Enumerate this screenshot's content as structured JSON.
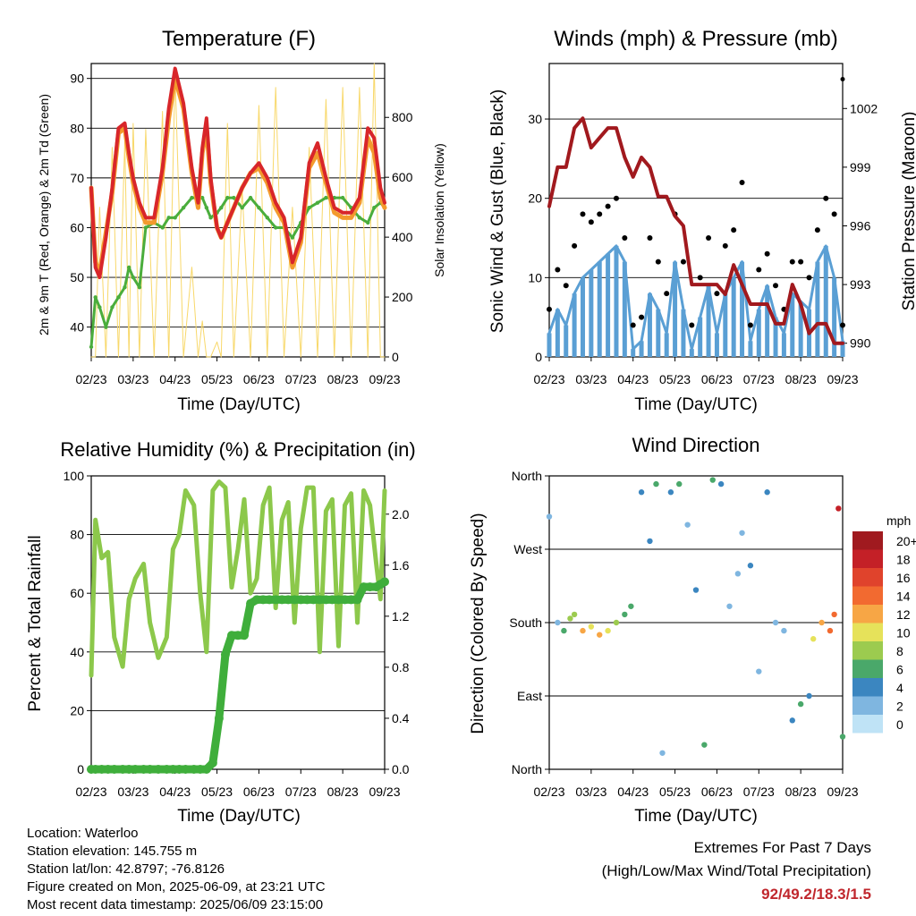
{
  "dates": [
    "02/23",
    "03/23",
    "04/23",
    "05/23",
    "06/23",
    "07/23",
    "08/23",
    "09/23"
  ],
  "panels": {
    "temperature": {
      "title": "Temperature (F)",
      "xlabel": "Time (Day/UTC)",
      "ylabel_left": "2m & 9m T (Red, Orange) & 2m Td (Green)",
      "ylabel_right": "Solar Insolation (Yellow)"
    },
    "winds": {
      "title": "Winds (mph) & Pressure (mb)",
      "xlabel": "Time (Day/UTC)",
      "ylabel_left": "Sonic Wind & Gust (Blue, Black)",
      "ylabel_right": "Station Pressure (Maroon)"
    },
    "humidity": {
      "title": "Relative Humidity (%) & Precipitation (in)",
      "xlabel": "Time (Day/UTC)",
      "ylabel_left": "Percent & Total Rainfall"
    },
    "direction": {
      "title": "Wind Direction",
      "xlabel": "Time (Day/UTC)",
      "ylabel_left": "Direction (Colored By Speed)"
    }
  },
  "colorbar": {
    "unit": "mph",
    "labels": [
      "20+",
      "18",
      "16",
      "14",
      "12",
      "10",
      "8",
      "6",
      "4",
      "2",
      "0"
    ],
    "colors": [
      "#a01a1f",
      "#c42027",
      "#e0432c",
      "#f26a30",
      "#f7a645",
      "#e6e25a",
      "#9ccb4f",
      "#4aa86a",
      "#3b86c0",
      "#7fb6e0",
      "#bfe3f6"
    ]
  },
  "footer": {
    "location": "Location: Waterloo",
    "elevation": "Station elevation: 145.755 m",
    "latlon": "Station lat/lon: 42.8797; -76.8126",
    "created": "Figure created on Mon, 2025-06-09, at 23:21 UTC",
    "latest": "Most recent data timestamp: 2025/06/09 23:15:00"
  },
  "extremes": {
    "line1": "Extremes For Past 7 Days",
    "line2": "(High/Low/Max Wind/Total Precipitation)",
    "values": "92/49.2/18.3/1.5"
  },
  "chart_data": [
    {
      "type": "line",
      "title": "Temperature (F)",
      "xlabel": "Time (Day/UTC)",
      "ylabel": "2m & 9m T (Red, Orange) & 2m Td (Green)",
      "y2label": "Solar Insolation (Yellow)",
      "categories": [
        "02/23",
        "03/23",
        "04/23",
        "05/23",
        "06/23",
        "07/23",
        "08/23",
        "09/23"
      ],
      "ylim": [
        34,
        93
      ],
      "y2lim": [
        0,
        980
      ],
      "grid": true,
      "x": [
        0,
        0.1,
        0.2,
        0.35,
        0.5,
        0.65,
        0.8,
        0.9,
        1.0,
        1.15,
        1.3,
        1.5,
        1.7,
        1.85,
        2.0,
        2.2,
        2.4,
        2.55,
        2.65,
        2.75,
        2.85,
        3.0,
        3.1,
        3.25,
        3.4,
        3.6,
        3.8,
        4.0,
        4.2,
        4.4,
        4.6,
        4.8,
        5.0,
        5.2,
        5.4,
        5.6,
        5.8,
        6.0,
        6.2,
        6.4,
        6.6,
        6.75,
        6.9,
        7.0
      ],
      "series": [
        {
          "name": "2m T",
          "axis": "left",
          "values": [
            68,
            52,
            50,
            58,
            68,
            80,
            81,
            75,
            70,
            65,
            62,
            62,
            72,
            84,
            92,
            85,
            72,
            65,
            76,
            82,
            70,
            60,
            58,
            61,
            64,
            68,
            71,
            73,
            70,
            65,
            62,
            53,
            58,
            73,
            77,
            70,
            64,
            63,
            63,
            66,
            80,
            78,
            68,
            65
          ]
        },
        {
          "name": "9m T",
          "axis": "left",
          "values": [
            68,
            53,
            51,
            59,
            67,
            79,
            80,
            74,
            69,
            64,
            61,
            61,
            71,
            82,
            90,
            84,
            71,
            64,
            75,
            80,
            69,
            60,
            58,
            61,
            64,
            68,
            71,
            72,
            69,
            64,
            61,
            52,
            57,
            72,
            75,
            69,
            63,
            62,
            62,
            65,
            78,
            75,
            66,
            64
          ]
        },
        {
          "name": "2m Td",
          "axis": "left",
          "values": [
            36,
            46,
            44,
            40,
            44,
            46,
            48,
            52,
            50,
            48,
            60,
            61,
            60,
            62,
            62,
            64,
            66,
            66,
            66,
            64,
            62,
            63,
            64,
            66,
            66,
            64,
            66,
            64,
            62,
            60,
            60,
            58,
            61,
            64,
            65,
            66,
            66,
            66,
            64,
            62,
            61,
            64,
            65,
            64
          ]
        },
        {
          "name": "Solar Insolation",
          "axis": "right",
          "values": [
            0,
            0,
            500,
            0,
            700,
            0,
            720,
            0,
            780,
            0,
            760,
            0,
            820,
            0,
            950,
            0,
            300,
            0,
            120,
            0,
            0,
            50,
            0,
            780,
            0,
            560,
            0,
            840,
            0,
            900,
            0,
            500,
            0,
            700,
            0,
            860,
            0,
            900,
            0,
            900,
            0,
            980,
            0,
            0
          ]
        }
      ]
    },
    {
      "type": "scatter",
      "title": "Winds (mph) & Pressure (mb)",
      "xlabel": "Time (Day/UTC)",
      "ylabel": "Sonic Wind & Gust (Blue, Black)",
      "y2label": "Station Pressure (Maroon)",
      "categories": [
        "02/23",
        "03/23",
        "04/23",
        "05/23",
        "06/23",
        "07/23",
        "08/23",
        "09/23"
      ],
      "ylim": [
        0,
        37
      ],
      "y2lim": [
        989.3,
        1004.3
      ],
      "grid": true,
      "x": [
        0,
        0.2,
        0.4,
        0.6,
        0.8,
        1.0,
        1.2,
        1.4,
        1.6,
        1.8,
        2.0,
        2.2,
        2.4,
        2.6,
        2.8,
        3.0,
        3.2,
        3.4,
        3.6,
        3.8,
        4.0,
        4.2,
        4.4,
        4.6,
        4.8,
        5.0,
        5.2,
        5.4,
        5.6,
        5.8,
        6.0,
        6.2,
        6.4,
        6.6,
        6.8,
        7.0
      ],
      "series": [
        {
          "name": "Sonic Wind",
          "axis": "left",
          "values": [
            3,
            6,
            4,
            8,
            10,
            11,
            12,
            13,
            14,
            12,
            1,
            2,
            8,
            6,
            3,
            12,
            6,
            1,
            5,
            9,
            3,
            8,
            10,
            12,
            2,
            6,
            9,
            5,
            3,
            8,
            7,
            6,
            12,
            14,
            10,
            2
          ]
        },
        {
          "name": "Gust",
          "axis": "left",
          "values": [
            6,
            11,
            9,
            14,
            18,
            17,
            18,
            19,
            20,
            15,
            4,
            5,
            15,
            12,
            8,
            18,
            12,
            4,
            10,
            15,
            8,
            14,
            16,
            22,
            4,
            11,
            13,
            9,
            6,
            12,
            12,
            10,
            16,
            20,
            18,
            4
          ]
        },
        {
          "name": "Station Pressure",
          "axis": "right",
          "values": [
            997,
            999,
            999,
            1001,
            1001.5,
            1000,
            1000.5,
            1001,
            1001,
            999.5,
            998.5,
            999.5,
            999,
            997.5,
            997.5,
            996.5,
            996,
            993,
            993,
            993,
            993,
            992.5,
            994,
            993,
            992,
            992,
            992,
            991,
            991,
            993,
            992,
            990.5,
            991,
            991,
            990,
            990
          ]
        },
        {
          "name": "Pressure spike",
          "axis": "right",
          "values": [
            null,
            null,
            null,
            null,
            null,
            null,
            null,
            null,
            null,
            null,
            null,
            null,
            null,
            null,
            null,
            null,
            null,
            null,
            null,
            null,
            null,
            null,
            null,
            null,
            null,
            null,
            null,
            null,
            null,
            null,
            null,
            null,
            null,
            null,
            null,
            1003.5
          ]
        }
      ]
    },
    {
      "type": "line",
      "title": "Relative Humidity (%) & Precipitation (in)",
      "xlabel": "Time (Day/UTC)",
      "ylabel": "Percent & Total Rainfall",
      "categories": [
        "02/23",
        "03/23",
        "04/23",
        "05/23",
        "06/23",
        "07/23",
        "08/23",
        "09/23"
      ],
      "ylim": [
        0,
        100
      ],
      "y2lim": [
        0,
        2.3
      ],
      "grid": true,
      "x": [
        0,
        0.1,
        0.25,
        0.4,
        0.55,
        0.75,
        0.9,
        1.05,
        1.25,
        1.4,
        1.6,
        1.8,
        1.95,
        2.1,
        2.25,
        2.45,
        2.6,
        2.75,
        2.9,
        3.05,
        3.2,
        3.35,
        3.5,
        3.65,
        3.8,
        3.95,
        4.1,
        4.25,
        4.4,
        4.55,
        4.7,
        4.85,
        5.0,
        5.15,
        5.3,
        5.45,
        5.6,
        5.75,
        5.9,
        6.05,
        6.2,
        6.35,
        6.5,
        6.65,
        6.8,
        6.9,
        7.0
      ],
      "series": [
        {
          "name": "Relative Humidity",
          "axis": "left",
          "values": [
            32,
            85,
            72,
            74,
            45,
            35,
            58,
            65,
            70,
            50,
            38,
            45,
            75,
            80,
            95,
            90,
            60,
            40,
            95,
            98,
            96,
            62,
            75,
            92,
            60,
            65,
            90,
            96,
            55,
            85,
            91,
            50,
            82,
            96,
            96,
            40,
            88,
            92,
            42,
            90,
            94,
            50,
            95,
            90,
            70,
            58,
            95
          ]
        },
        {
          "name": "Total Precipitation",
          "axis": "right",
          "values": [
            0,
            0,
            0,
            0,
            0,
            0,
            0,
            0,
            0,
            0,
            0,
            0,
            0,
            0,
            0,
            0,
            0,
            0,
            0.05,
            0.4,
            0.9,
            1.05,
            1.05,
            1.05,
            1.3,
            1.33,
            1.33,
            1.33,
            1.33,
            1.33,
            1.33,
            1.33,
            1.33,
            1.33,
            1.33,
            1.33,
            1.33,
            1.33,
            1.33,
            1.33,
            1.33,
            1.33,
            1.43,
            1.43,
            1.43,
            1.45,
            1.47
          ]
        }
      ]
    },
    {
      "type": "scatter",
      "title": "Wind Direction",
      "xlabel": "Time (Day/UTC)",
      "ylabel": "Direction (Colored By Speed)",
      "categories": [
        "02/23",
        "03/23",
        "04/23",
        "05/23",
        "06/23",
        "07/23",
        "08/23",
        "09/23"
      ],
      "ylim": [
        0,
        360
      ],
      "ytick_labels": [
        "North",
        "East",
        "South",
        "West",
        "North"
      ],
      "colorbar_unit": "mph",
      "grid": true,
      "series": [
        {
          "name": "Direction (colored by speed)",
          "x": [
            0,
            0.2,
            0.35,
            0.5,
            0.6,
            0.8,
            1.0,
            1.2,
            1.4,
            1.6,
            1.8,
            1.95,
            2.2,
            2.4,
            2.55,
            2.7,
            2.9,
            3.1,
            3.3,
            3.5,
            3.7,
            3.9,
            4.1,
            4.3,
            4.5,
            4.6,
            4.8,
            5.0,
            5.2,
            5.4,
            5.6,
            5.8,
            6.0,
            6.2,
            6.3,
            6.5,
            6.7,
            6.8,
            6.9,
            7.0
          ],
          "y": [
            310,
            180,
            170,
            185,
            190,
            170,
            175,
            165,
            170,
            180,
            190,
            200,
            340,
            280,
            350,
            20,
            340,
            350,
            300,
            220,
            30,
            355,
            350,
            200,
            240,
            290,
            250,
            120,
            340,
            180,
            170,
            60,
            80,
            90,
            160,
            180,
            170,
            190,
            320,
            40
          ],
          "speed": [
            3,
            2,
            6,
            9,
            8,
            12,
            11,
            13,
            10,
            8,
            7,
            6,
            5,
            4,
            6,
            2,
            5,
            7,
            2,
            4,
            6,
            7,
            5,
            3,
            2,
            3,
            4,
            2,
            5,
            2,
            3,
            5,
            6,
            5,
            10,
            12,
            14,
            15,
            18,
            6
          ]
        }
      ]
    }
  ]
}
